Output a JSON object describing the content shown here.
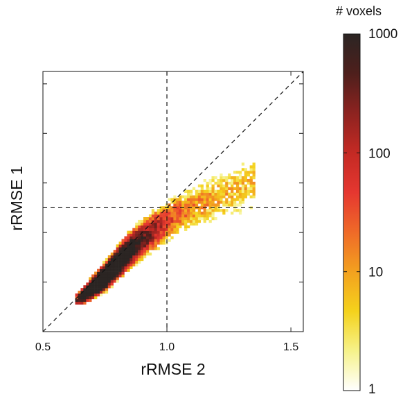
{
  "chart_data": {
    "type": "heatmap",
    "title": "",
    "xlabel": "rRMSE 2",
    "ylabel": "rRMSE 1",
    "xlim": [
      0.5,
      1.55
    ],
    "ylim": [
      0.5,
      1.55
    ],
    "x_ticks": [
      0.5,
      1.0,
      1.5
    ],
    "x_tick_labels": [
      "0.5",
      "1.0",
      "1.5"
    ],
    "y_ticks": [
      0.5,
      0.7,
      0.9,
      1.1,
      1.3,
      1.5
    ],
    "y_tick_labels": [],
    "reference_lines": [
      {
        "type": "vertical",
        "x": 1.0,
        "style": "dashed"
      },
      {
        "type": "horizontal",
        "y": 1.0,
        "style": "dashed"
      },
      {
        "type": "identity",
        "from": [
          0.5,
          0.5
        ],
        "to": [
          1.55,
          1.55
        ],
        "style": "dashed"
      }
    ],
    "colorbar": {
      "label": "# voxels",
      "scale": "log",
      "range": [
        1,
        1000
      ],
      "ticks": [
        1,
        10,
        100,
        1000
      ],
      "tick_labels": [
        "1",
        "10",
        "100",
        "1000"
      ],
      "colormap": [
        "#ffffff",
        "#f6f28a",
        "#f4d21c",
        "#f3a11f",
        "#ef6a28",
        "#e53730",
        "#c42a24",
        "#8d2320",
        "#4e1f1c",
        "#2b2523"
      ]
    },
    "density": {
      "description_units": "data units",
      "ridge": [
        [
          0.65,
          0.635
        ],
        [
          0.75,
          0.72
        ],
        [
          0.85,
          0.83
        ],
        [
          0.95,
          0.91
        ],
        [
          1.05,
          0.98
        ],
        [
          1.2,
          1.04
        ],
        [
          1.35,
          1.1
        ]
      ],
      "peak": [
        0.735,
        0.72
      ],
      "peak_count": 1000,
      "extent_x": [
        0.63,
        1.35
      ],
      "extent_y": [
        0.61,
        1.27
      ]
    }
  }
}
